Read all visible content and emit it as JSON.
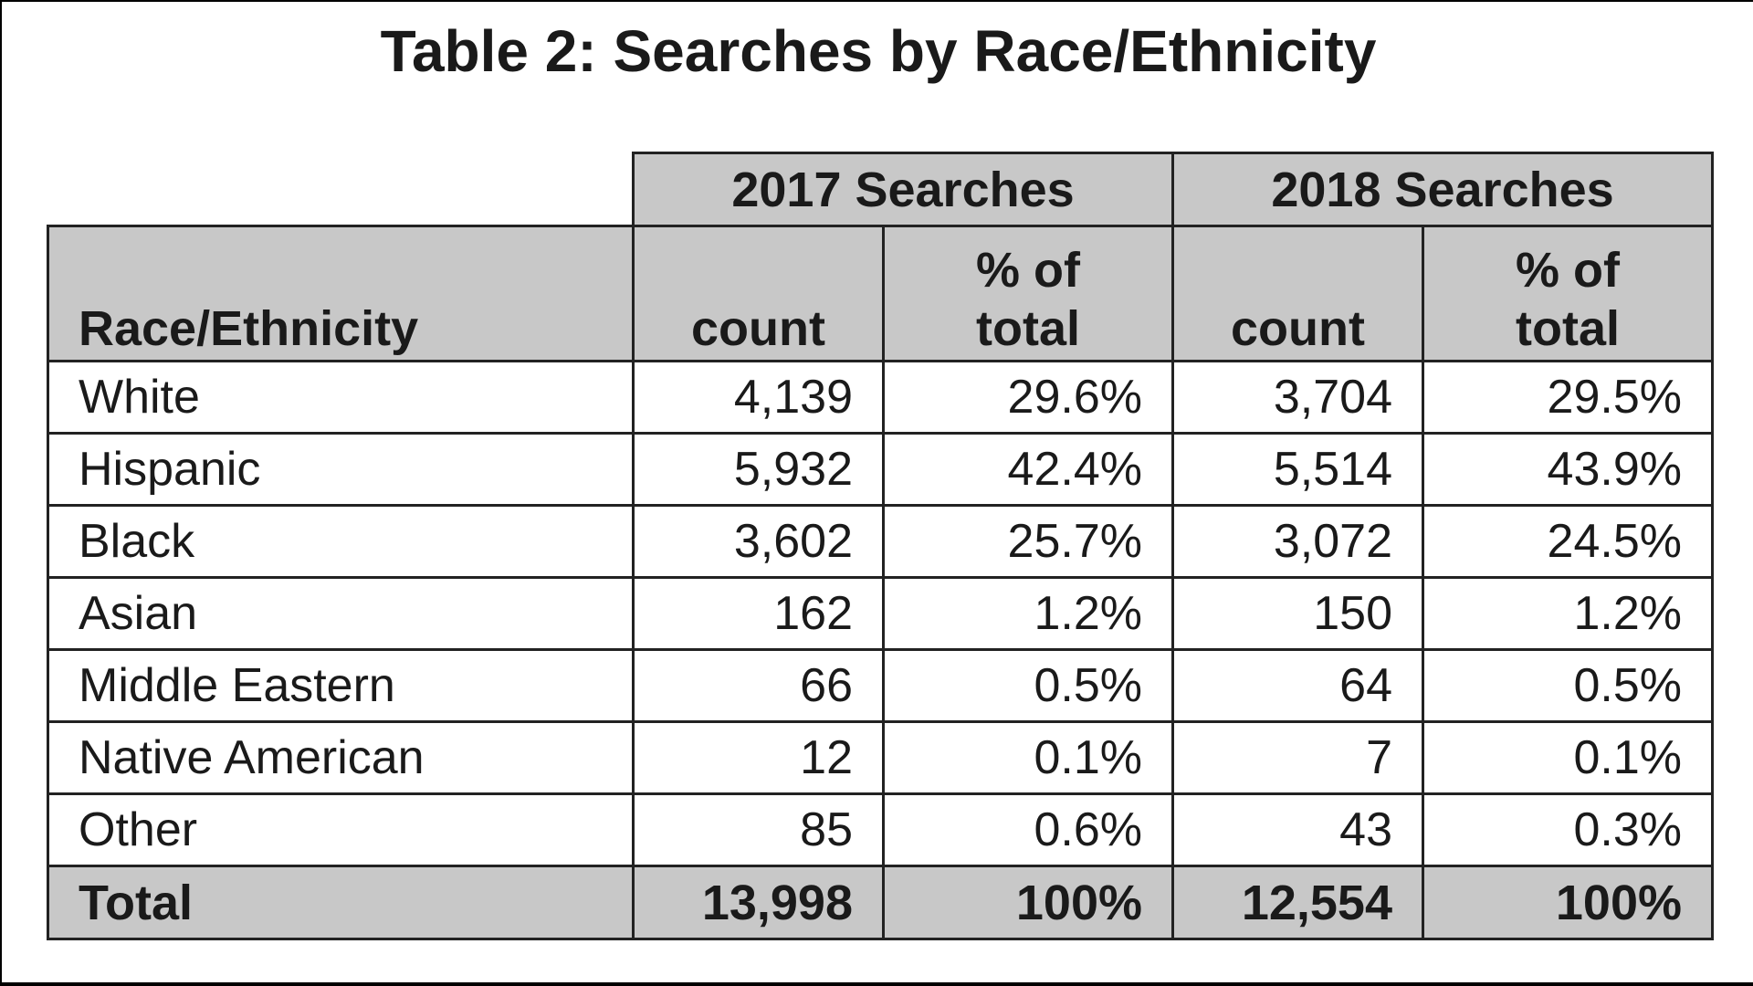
{
  "title": "Table 2: Searches by Race/Ethnicity",
  "table": {
    "group_headers": [
      "2017 Searches",
      "2018 Searches"
    ],
    "column_headers": {
      "label": "Race/Ethnicity",
      "count_2017": "count",
      "pct_2017": "% of total",
      "count_2018": "count",
      "pct_2018": "% of total"
    },
    "rows": [
      {
        "label": "White",
        "count_2017": "4,139",
        "pct_2017": "29.6%",
        "count_2018": "3,704",
        "pct_2018": "29.5%"
      },
      {
        "label": "Hispanic",
        "count_2017": "5,932",
        "pct_2017": "42.4%",
        "count_2018": "5,514",
        "pct_2018": "43.9%"
      },
      {
        "label": "Black",
        "count_2017": "3,602",
        "pct_2017": "25.7%",
        "count_2018": "3,072",
        "pct_2018": "24.5%"
      },
      {
        "label": "Asian",
        "count_2017": "162",
        "pct_2017": "1.2%",
        "count_2018": "150",
        "pct_2018": "1.2%"
      },
      {
        "label": "Middle Eastern",
        "count_2017": "66",
        "pct_2017": "0.5%",
        "count_2018": "64",
        "pct_2018": "0.5%"
      },
      {
        "label": "Native American",
        "count_2017": "12",
        "pct_2017": "0.1%",
        "count_2018": "7",
        "pct_2018": "0.1%"
      },
      {
        "label": "Other",
        "count_2017": "85",
        "pct_2017": "0.6%",
        "count_2018": "43",
        "pct_2018": "0.3%"
      }
    ],
    "total": {
      "label": "Total",
      "count_2017": "13,998",
      "pct_2017": "100%",
      "count_2018": "12,554",
      "pct_2018": "100%"
    }
  },
  "colors": {
    "header_fill": "#c8c8c8",
    "border": "#222222",
    "background": "#ffffff",
    "text": "#1a1a1a"
  }
}
